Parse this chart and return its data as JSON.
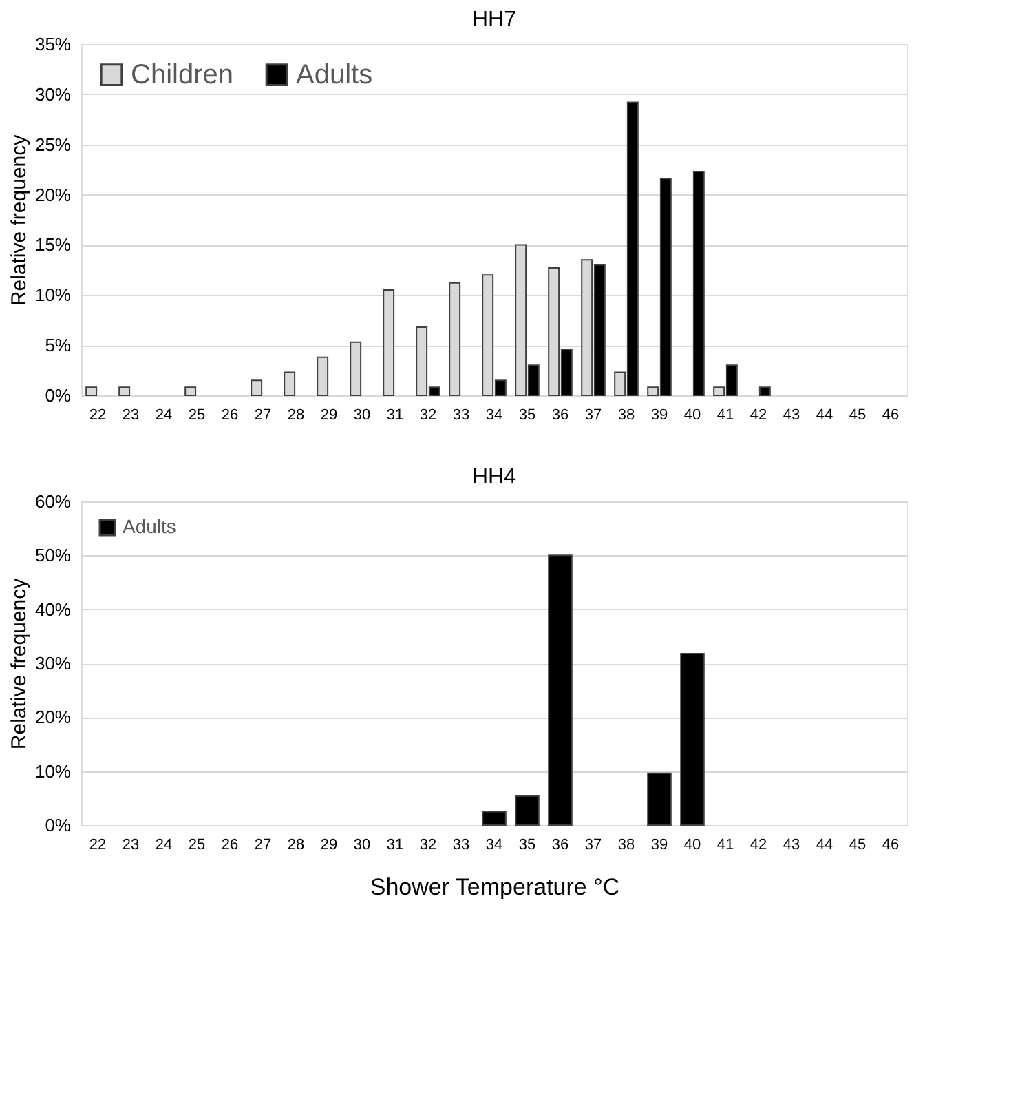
{
  "chart_data": [
    {
      "type": "bar",
      "title": "HH7",
      "ylabel": "Relative frequency",
      "categories": [
        "22",
        "23",
        "24",
        "25",
        "26",
        "27",
        "28",
        "29",
        "30",
        "31",
        "32",
        "33",
        "34",
        "35",
        "36",
        "37",
        "38",
        "39",
        "40",
        "41",
        "42",
        "43",
        "44",
        "45",
        "46"
      ],
      "series": [
        {
          "name": "Children",
          "color": "#d9d9d9",
          "values": [
            0.8,
            0.8,
            0,
            0.8,
            0,
            1.5,
            2.3,
            3.8,
            5.3,
            10.5,
            6.8,
            11.2,
            12.0,
            15.0,
            12.7,
            13.5,
            2.3,
            0.8,
            0,
            0.8,
            0,
            0,
            0,
            0,
            0
          ]
        },
        {
          "name": "Adults",
          "color": "#000000",
          "values": [
            0,
            0,
            0,
            0,
            0,
            0,
            0,
            0,
            0,
            0,
            0.8,
            0,
            1.5,
            3.0,
            4.6,
            13.0,
            29.2,
            21.6,
            22.3,
            3.0,
            0.8,
            0,
            0,
            0,
            0
          ]
        }
      ],
      "ylim": [
        0,
        35
      ],
      "yticks": [
        {
          "value": 0,
          "label": "0%"
        },
        {
          "value": 5,
          "label": "5%"
        },
        {
          "value": 10,
          "label": "10%"
        },
        {
          "value": 15,
          "label": "15%"
        },
        {
          "value": 20,
          "label": "20%"
        },
        {
          "value": 25,
          "label": "25%"
        },
        {
          "value": 30,
          "label": "30%"
        },
        {
          "value": 35,
          "label": "35%"
        }
      ],
      "grid": "y",
      "legend": "top left"
    },
    {
      "type": "bar",
      "title": "HH4",
      "ylabel": "Relative frequency",
      "xlabel": "Shower Temperature °C",
      "categories": [
        "22",
        "23",
        "24",
        "25",
        "26",
        "27",
        "28",
        "29",
        "30",
        "31",
        "32",
        "33",
        "34",
        "35",
        "36",
        "37",
        "38",
        "39",
        "40",
        "41",
        "42",
        "43",
        "44",
        "45",
        "46"
      ],
      "series": [
        {
          "name": "Adults",
          "color": "#000000",
          "values": [
            0,
            0,
            0,
            0,
            0,
            0,
            0,
            0,
            0,
            0,
            0,
            0,
            2.5,
            5.4,
            50.0,
            0,
            0,
            9.6,
            31.8,
            0,
            0,
            0,
            0,
            0,
            0
          ]
        }
      ],
      "ylim": [
        0,
        60
      ],
      "yticks": [
        {
          "value": 0,
          "label": "0%"
        },
        {
          "value": 10,
          "label": "10%"
        },
        {
          "value": 20,
          "label": "20%"
        },
        {
          "value": 30,
          "label": "30%"
        },
        {
          "value": 40,
          "label": "40%"
        },
        {
          "value": 50,
          "label": "50%"
        },
        {
          "value": 60,
          "label": "60%"
        }
      ],
      "grid": "y",
      "legend": "top left"
    }
  ]
}
